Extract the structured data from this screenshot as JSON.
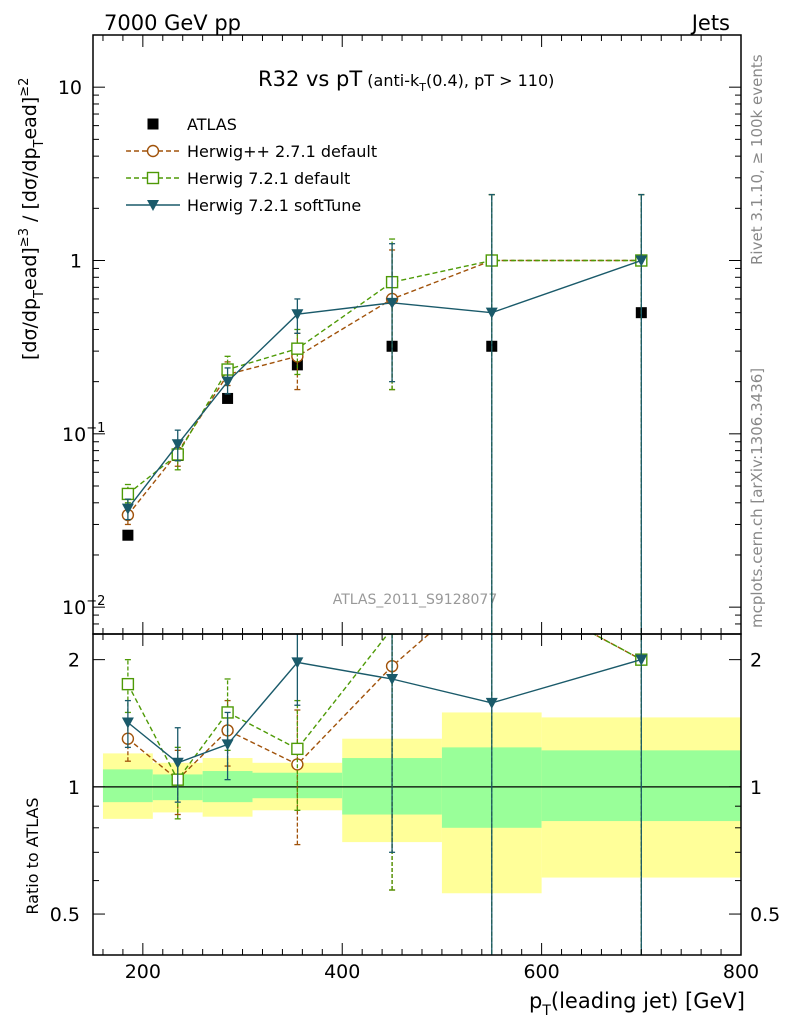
{
  "header": {
    "left": "7000 GeV pp",
    "right": "Jets"
  },
  "side_labels": {
    "rivet": "Rivet 3.1.10, ≥ 100k events",
    "mcplots": "mcplots.cern.ch [arXiv:1306.3436]"
  },
  "chart_data": {
    "type": "line",
    "title": "R32 vs pT",
    "title_sub": "(anti-k",
    "title_sub_t": "T",
    "title_sub_rest": "(0.4), pT > 110)",
    "analysis_tag": "ATLAS_2011_S9128077",
    "xlabel": "p",
    "xlabel_sub": "T",
    "xlabel_rest": "(leading jet) [GeV]",
    "ylabel": "[dσ/dp",
    "ylabel_t": "T",
    "ylabel_lead": "ead]",
    "ylabel_pow1": "≥3",
    "ylabel_mid": " / [dσ/dp",
    "ylabel_pow2": "≥2",
    "ylabel_l": "l",
    "ratio_ylabel": "Ratio to ATLAS",
    "xlim": [
      150,
      800
    ],
    "ylim": [
      0.007,
      20
    ],
    "log_y": true,
    "ratio_ylim": [
      0.4,
      2.3
    ],
    "x_ticks": [
      "200",
      "400",
      "600",
      "800"
    ],
    "x_tick_values": [
      200,
      400,
      600,
      800
    ],
    "y_ticks": [
      {
        "value": 10,
        "label": "10"
      },
      {
        "value": 1,
        "label": "1"
      },
      {
        "value": 0.1,
        "label": "10",
        "exp": "−1"
      },
      {
        "value": 0.01,
        "label": "10",
        "exp": "−2"
      }
    ],
    "ratio_ticks": [
      {
        "value": 2,
        "label": "2"
      },
      {
        "value": 1,
        "label": "1"
      },
      {
        "value": 0.5,
        "label": "0.5"
      }
    ],
    "bins": [
      {
        "lo": 160,
        "hi": 210
      },
      {
        "lo": 210,
        "hi": 260
      },
      {
        "lo": 260,
        "hi": 310
      },
      {
        "lo": 310,
        "hi": 400
      },
      {
        "lo": 400,
        "hi": 500
      },
      {
        "lo": 500,
        "hi": 600
      },
      {
        "lo": 600,
        "hi": 800
      }
    ],
    "x": [
      185,
      235,
      285,
      355,
      450,
      550,
      700
    ],
    "band_yellow": [
      [
        0.84,
        1.2
      ],
      [
        0.87,
        1.14
      ],
      [
        0.85,
        1.17
      ],
      [
        0.88,
        1.14
      ],
      [
        0.74,
        1.3
      ],
      [
        0.56,
        1.5
      ],
      [
        0.61,
        1.46
      ]
    ],
    "band_green": [
      [
        0.92,
        1.1
      ],
      [
        0.93,
        1.07
      ],
      [
        0.92,
        1.09
      ],
      [
        0.94,
        1.08
      ],
      [
        0.86,
        1.17
      ],
      [
        0.8,
        1.24
      ],
      [
        0.83,
        1.22
      ]
    ],
    "series": [
      {
        "name": "ATLAS",
        "color": "#000000",
        "marker": "square-filled",
        "values": [
          0.026,
          0.075,
          0.16,
          0.25,
          0.32,
          0.32,
          0.5
        ],
        "ratio": [
          1,
          1,
          1,
          1,
          1,
          1,
          1
        ],
        "err_lo": [
          0.025,
          0.07,
          0.155,
          0.24,
          0.31,
          0.31,
          0.49
        ],
        "err_hi": [
          0.027,
          0.08,
          0.165,
          0.26,
          0.33,
          0.33,
          0.51
        ],
        "ratio_lo": [
          1,
          1,
          1,
          1,
          1,
          1,
          1
        ],
        "ratio_hi": [
          1,
          1,
          1,
          1,
          1,
          1,
          1
        ]
      },
      {
        "name": "Herwig++ 2.7.1 default",
        "color": "#a0520a",
        "marker": "circle-open",
        "dashed": true,
        "values": [
          0.034,
          0.078,
          0.22,
          0.28,
          0.6,
          1.0,
          1.0
        ],
        "ratio": [
          1.3,
          1.04,
          1.36,
          1.13,
          1.93,
          3.1,
          2.0
        ],
        "err_lo": [
          0.03,
          0.065,
          0.19,
          0.18,
          0.18,
          0.0001,
          0.0001
        ],
        "err_hi": [
          0.038,
          0.092,
          0.26,
          0.38,
          1.15,
          2.4,
          2.4
        ],
        "ratio_lo": [
          1.15,
          0.86,
          1.12,
          0.73,
          0.57,
          0.3,
          0.3
        ],
        "ratio_hi": [
          1.45,
          1.22,
          1.6,
          1.52,
          2.4,
          2.4,
          2.4
        ]
      },
      {
        "name": "Herwig 7.2.1 default",
        "color": "#4e9a06",
        "marker": "square-open",
        "dashed": true,
        "values": [
          0.045,
          0.076,
          0.235,
          0.31,
          0.75,
          1.0,
          1.0
        ],
        "ratio": [
          1.75,
          1.04,
          1.5,
          1.23,
          2.37,
          3.1,
          2.0
        ],
        "err_lo": [
          0.04,
          0.062,
          0.2,
          0.22,
          0.18,
          0.0001,
          0.0001
        ],
        "err_hi": [
          0.051,
          0.09,
          0.28,
          0.4,
          1.33,
          2.4,
          2.4
        ],
        "ratio_lo": [
          1.5,
          0.84,
          1.22,
          0.88,
          0.57,
          0.3,
          0.3
        ],
        "ratio_hi": [
          2.0,
          1.24,
          1.8,
          1.6,
          2.4,
          2.4,
          2.4
        ]
      },
      {
        "name": "Herwig 7.2.1 softTune",
        "color": "#1a5a6a",
        "marker": "triangle-down-filled",
        "dashed": false,
        "values": [
          0.037,
          0.087,
          0.2,
          0.49,
          0.57,
          0.5,
          1.0
        ],
        "ratio": [
          1.42,
          1.14,
          1.26,
          1.97,
          1.8,
          1.58,
          2.0
        ],
        "err_lo": [
          0.032,
          0.07,
          0.17,
          0.38,
          0.2,
          0.0001,
          0.0001
        ],
        "err_hi": [
          0.042,
          0.105,
          0.24,
          0.6,
          1.25,
          2.4,
          2.4
        ],
        "ratio_lo": [
          1.24,
          0.92,
          1.04,
          1.56,
          0.7,
          0.3,
          0.3
        ],
        "ratio_hi": [
          1.6,
          1.38,
          1.5,
          2.35,
          2.4,
          2.4,
          2.4
        ]
      }
    ]
  }
}
